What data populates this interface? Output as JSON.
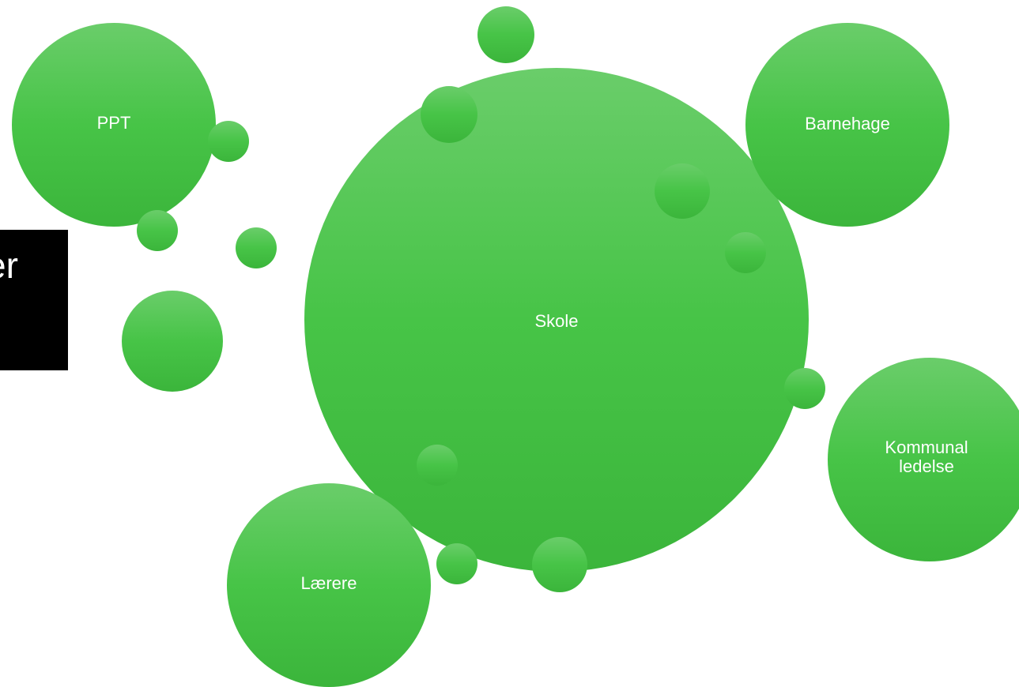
{
  "diagram": {
    "partial_text": "er",
    "nodes": {
      "skole": {
        "label": "Skole"
      },
      "ppt": {
        "label": "PPT"
      },
      "barnehage": {
        "label": "Barnehage"
      },
      "kommunal": {
        "label": "Kommunal\nledelse"
      },
      "laerere": {
        "label": "Lærere"
      }
    },
    "colors": {
      "bubble_top": "#6acd6a",
      "bubble_mid": "#47c447",
      "bubble_bottom": "#3bb53b",
      "label_text": "#ffffff",
      "panel": "#000000"
    }
  }
}
